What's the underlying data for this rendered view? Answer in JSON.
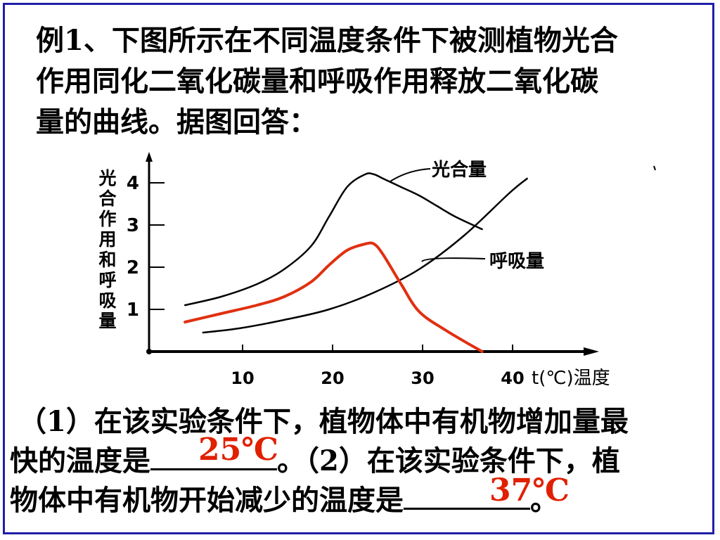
{
  "question": {
    "lines": [
      "例1、下图所示在不同温度条件下被测植物光合",
      "作用同化二氧化碳量和呼吸作用释放二氧化碳",
      "量的曲线。据图回答："
    ]
  },
  "sub_questions": {
    "line1": "（1）在该实验条件下，植物体中有机物增加量最",
    "line2_a": "快的温度是",
    "line2_b": "。（2）在该实验条件下，植",
    "line3_a": "物体中有机物开始减少的温度是",
    "line3_b": "。"
  },
  "answers": {
    "q1": "25℃",
    "q2": "37℃"
  },
  "colors": {
    "border": "#1f1fa8",
    "answer": "#e02000",
    "net_curve": "#e03010",
    "axis": "#000000"
  },
  "chart_data": {
    "type": "line",
    "ylabel": "光合作用和呼吸量",
    "xlabel": "t(℃)温度",
    "x_ticks": [
      10,
      20,
      30,
      40
    ],
    "y_ticks": [
      1,
      2,
      3,
      4
    ],
    "xlim": [
      0,
      48
    ],
    "ylim": [
      0,
      4.5
    ],
    "series": [
      {
        "name": "光合量",
        "color": "#000000",
        "x": [
          4,
          8,
          12,
          15,
          18,
          20,
          22,
          24,
          25,
          26,
          28,
          30,
          32,
          34,
          37
        ],
        "y": [
          1.1,
          1.3,
          1.6,
          1.95,
          2.5,
          3.2,
          3.9,
          4.2,
          4.2,
          4.1,
          3.9,
          3.7,
          3.45,
          3.2,
          2.9
        ]
      },
      {
        "name": "呼吸量",
        "color": "#000000",
        "x": [
          6,
          10,
          15,
          20,
          25,
          30,
          35,
          40,
          42
        ],
        "y": [
          0.45,
          0.55,
          0.75,
          1.0,
          1.4,
          1.95,
          2.75,
          3.75,
          4.1
        ]
      },
      {
        "name": "",
        "color": "#e03010",
        "x": [
          4,
          8,
          12,
          15,
          18,
          20,
          22,
          24,
          25,
          26,
          28,
          30,
          33,
          37
        ],
        "y": [
          0.7,
          0.9,
          1.1,
          1.3,
          1.65,
          2.05,
          2.4,
          2.55,
          2.55,
          2.3,
          1.6,
          0.95,
          0.5,
          0.0
        ]
      }
    ]
  }
}
